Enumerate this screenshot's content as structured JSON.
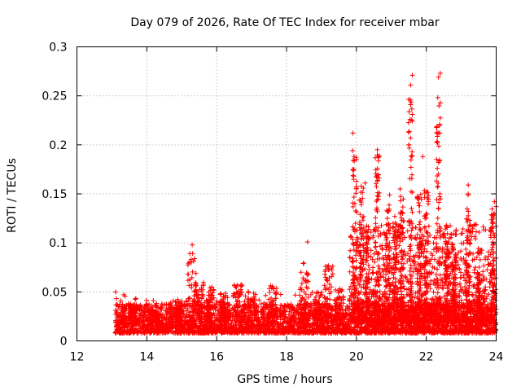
{
  "chart_data": {
    "type": "scatter",
    "title": "Day 079 of 2026, Rate Of TEC Index for receiver mbar",
    "xlabel": "GPS time / hours",
    "ylabel": "ROTI / TECUs",
    "xlim": [
      12,
      24
    ],
    "ylim": [
      0,
      0.3
    ],
    "x_ticks": [
      "12",
      "14",
      "16",
      "18",
      "20",
      "22",
      "24"
    ],
    "y_ticks": [
      "0",
      "0.05",
      "0.1",
      "0.15",
      "0.2",
      "0.25",
      "0.3"
    ],
    "grid": true,
    "marker": "+",
    "color": "#ff0000",
    "series": [
      {
        "name": "ROTI",
        "description": "Dense cloud of ROTI points from ~13.1 h to 24 h; baseline 0.01-0.04 TECU/s with enhancements after 19.8 h",
        "peaks": [
          {
            "x": 15.3,
            "y": 0.098
          },
          {
            "x": 18.6,
            "y": 0.101
          },
          {
            "x": 19.9,
            "y": 0.212
          },
          {
            "x": 20.0,
            "y": 0.185
          },
          {
            "x": 20.25,
            "y": 0.161
          },
          {
            "x": 20.6,
            "y": 0.195
          },
          {
            "x": 20.95,
            "y": 0.149
          },
          {
            "x": 21.25,
            "y": 0.155
          },
          {
            "x": 21.5,
            "y": 0.2
          },
          {
            "x": 21.55,
            "y": 0.261
          },
          {
            "x": 21.6,
            "y": 0.271
          },
          {
            "x": 21.55,
            "y": 0.241
          },
          {
            "x": 21.6,
            "y": 0.231
          },
          {
            "x": 21.55,
            "y": 0.207
          },
          {
            "x": 21.9,
            "y": 0.188
          },
          {
            "x": 22.3,
            "y": 0.203
          },
          {
            "x": 22.35,
            "y": 0.212
          },
          {
            "x": 22.4,
            "y": 0.243
          },
          {
            "x": 22.35,
            "y": 0.269
          },
          {
            "x": 22.4,
            "y": 0.273
          },
          {
            "x": 22.35,
            "y": 0.182
          },
          {
            "x": 23.2,
            "y": 0.159
          },
          {
            "x": 23.2,
            "y": 0.15
          },
          {
            "x": 23.95,
            "y": 0.142
          },
          {
            "x": 24.0,
            "y": 0.137
          }
        ]
      }
    ]
  }
}
